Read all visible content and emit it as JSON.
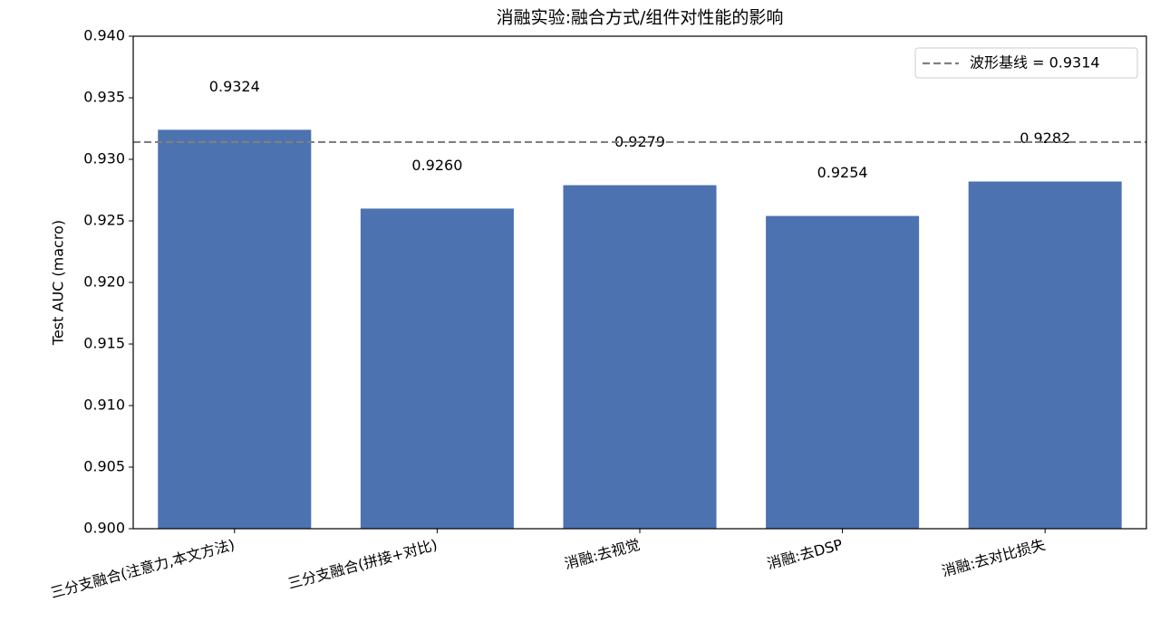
{
  "chart_data": {
    "type": "bar",
    "title": "消融实验:融合方式/组件对性能的影响",
    "ylabel": "Test AUC (macro)",
    "categories": [
      "三分支融合(注意力,本文方法)",
      "三分支融合(拼接+对比)",
      "消融:去视觉",
      "消融:去DSP",
      "消融:去对比损失"
    ],
    "values": [
      0.9324,
      0.926,
      0.9279,
      0.9254,
      0.9282
    ],
    "value_labels": [
      "0.9324",
      "0.9260",
      "0.9279",
      "0.9254",
      "0.9282"
    ],
    "color": "#4c72b0",
    "ylim": [
      0.9,
      0.94
    ],
    "yticks": [
      {
        "value": 0.9,
        "label": "0.900"
      },
      {
        "value": 0.905,
        "label": "0.905"
      },
      {
        "value": 0.91,
        "label": "0.910"
      },
      {
        "value": 0.915,
        "label": "0.915"
      },
      {
        "value": 0.92,
        "label": "0.920"
      },
      {
        "value": 0.925,
        "label": "0.925"
      },
      {
        "value": 0.93,
        "label": "0.930"
      },
      {
        "value": 0.935,
        "label": "0.935"
      },
      {
        "value": 0.94,
        "label": "0.940"
      }
    ],
    "baseline": {
      "value": 0.9314,
      "label": "波形基线 = 0.9314",
      "color": "#808080"
    },
    "legend": "upper right"
  }
}
